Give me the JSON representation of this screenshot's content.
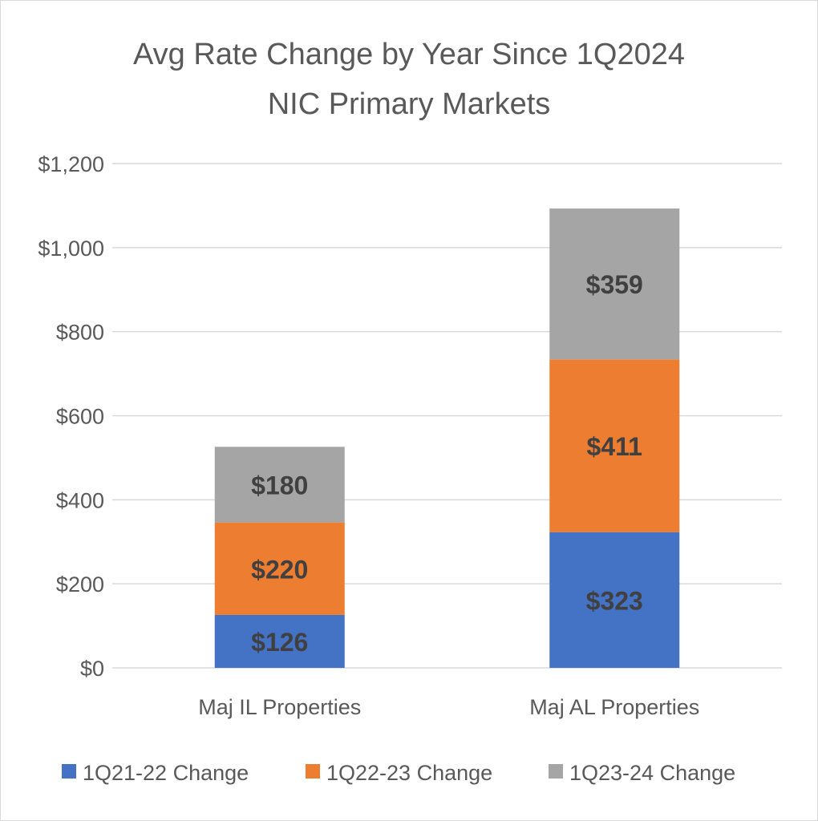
{
  "chart_data": {
    "type": "bar",
    "stacked": true,
    "title": "Avg Rate Change by Year Since 1Q2024",
    "subtitle": "NIC Primary Markets",
    "categories": [
      "Maj IL Properties",
      "Maj AL Properties"
    ],
    "series": [
      {
        "name": "1Q21-22 Change",
        "values": [
          126,
          323
        ],
        "labels": [
          "$126",
          "$323"
        ],
        "color": "#4472C4"
      },
      {
        "name": "1Q22-23 Change",
        "values": [
          220,
          411
        ],
        "labels": [
          "$220",
          "$411"
        ],
        "color": "#ED7D31"
      },
      {
        "name": "1Q23-24 Change",
        "values": [
          180,
          359
        ],
        "labels": [
          "$180",
          "$359"
        ],
        "color": "#A5A5A5"
      }
    ],
    "ylim": [
      0,
      1200
    ],
    "yticks": [
      0,
      200,
      400,
      600,
      800,
      1000,
      1200
    ],
    "ytick_labels": [
      "$0",
      "$200",
      "$400",
      "$600",
      "$800",
      "$1,000",
      "$1,200"
    ],
    "grid": true,
    "legend": "bottom"
  }
}
